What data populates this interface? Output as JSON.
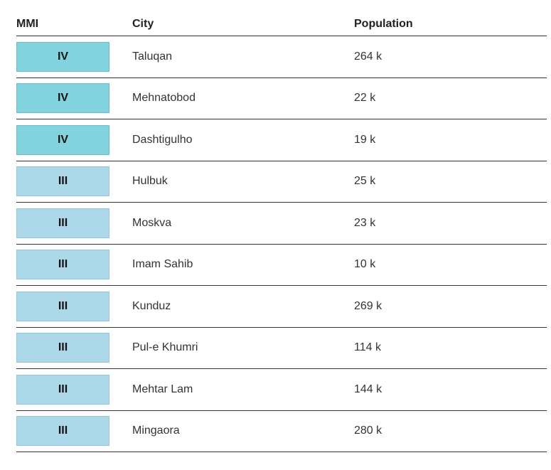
{
  "table": {
    "headers": {
      "mmi": "MMI",
      "city": "City",
      "population": "Population"
    },
    "rows": [
      {
        "mmi": "IV",
        "city": "Taluqan",
        "population": "264 k",
        "color": "#82d3de",
        "border": "#6bbfcb"
      },
      {
        "mmi": "IV",
        "city": "Mehnatobod",
        "population": "22 k",
        "color": "#82d3de",
        "border": "#6bbfcb"
      },
      {
        "mmi": "IV",
        "city": "Dashtigulho",
        "population": "19 k",
        "color": "#82d3de",
        "border": "#6bbfcb"
      },
      {
        "mmi": "III",
        "city": "Hulbuk",
        "population": "25 k",
        "color": "#acd8ea",
        "border": "#94c6db"
      },
      {
        "mmi": "III",
        "city": "Moskva",
        "population": "23 k",
        "color": "#acd8ea",
        "border": "#94c6db"
      },
      {
        "mmi": "III",
        "city": "Imam Sahib",
        "population": "10 k",
        "color": "#acd8ea",
        "border": "#94c6db"
      },
      {
        "mmi": "III",
        "city": "Kunduz",
        "population": "269 k",
        "color": "#acd8ea",
        "border": "#94c6db"
      },
      {
        "mmi": "III",
        "city": "Pul-e Khumri",
        "population": "114 k",
        "color": "#acd8ea",
        "border": "#94c6db"
      },
      {
        "mmi": "III",
        "city": "Mehtar Lam",
        "population": "144 k",
        "color": "#acd8ea",
        "border": "#94c6db"
      },
      {
        "mmi": "III",
        "city": "Mingaora",
        "population": "280 k",
        "color": "#acd8ea",
        "border": "#94c6db"
      }
    ]
  }
}
